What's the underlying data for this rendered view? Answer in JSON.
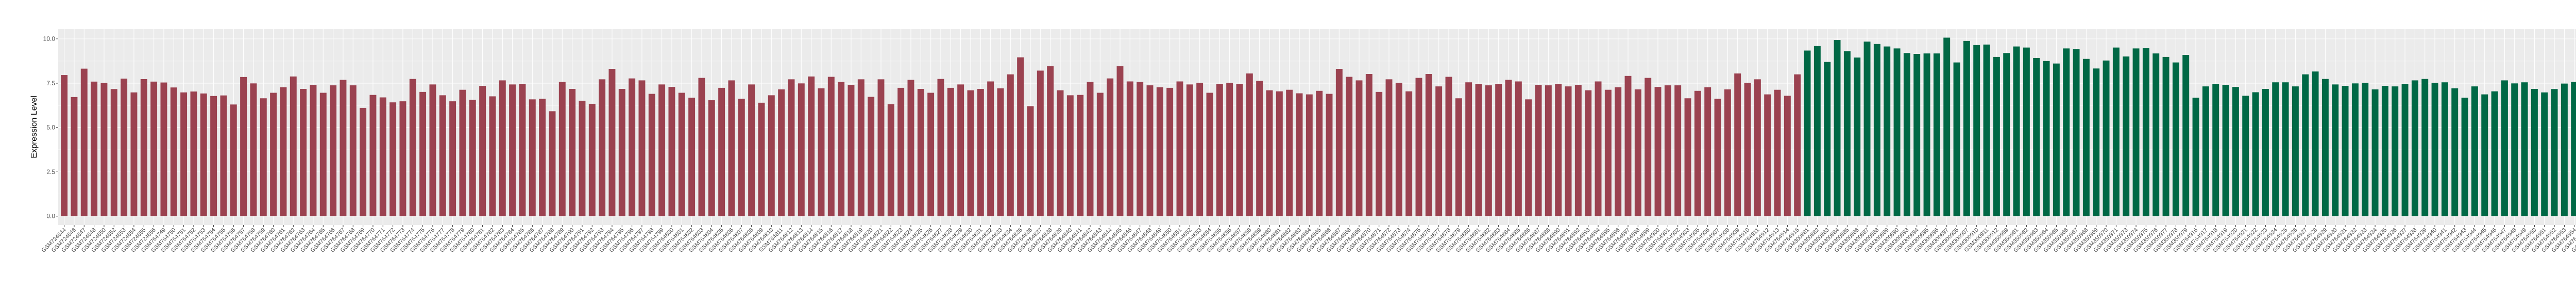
{
  "chart_data": {
    "type": "bar",
    "title": "",
    "xlabel": "",
    "ylabel": "Expression Level",
    "ylim": [
      -0.5,
      10.57
    ],
    "yticks": [
      "0.0",
      "2.5",
      "5.0",
      "7.5",
      "10.0"
    ],
    "ytick_values": [
      0,
      2.5,
      5,
      7.5,
      10
    ],
    "grid": true,
    "legend": "none",
    "panel_background": "#EBEBEB",
    "x_label_rotation_deg": 45,
    "color_groups": [
      {
        "color": "#9B4250",
        "from": "GSM724644",
        "to": "GSM764915"
      },
      {
        "color": "#006845",
        "from": "GSM300881",
        "to": "GSM80749"
      }
    ],
    "categories": [
      "GSM724644",
      "GSM724646",
      "GSM724647",
      "GSM724648",
      "GSM724650",
      "GSM724652",
      "GSM724653",
      "GSM724654",
      "GSM724655",
      "GSM724656",
      "GSM764749",
      "GSM764750",
      "GSM764751",
      "GSM764752",
      "GSM764753",
      "GSM764754",
      "GSM764755",
      "GSM764756",
      "GSM764757",
      "GSM764758",
      "GSM764759",
      "GSM764760",
      "GSM764761",
      "GSM764762",
      "GSM764763",
      "GSM764764",
      "GSM764765",
      "GSM764766",
      "GSM764767",
      "GSM764768",
      "GSM764769",
      "GSM764770",
      "GSM764771",
      "GSM764772",
      "GSM764773",
      "GSM764774",
      "GSM764775",
      "GSM764776",
      "GSM764777",
      "GSM764778",
      "GSM764779",
      "GSM764780",
      "GSM764781",
      "GSM764782",
      "GSM764783",
      "GSM764784",
      "GSM764785",
      "GSM764786",
      "GSM764787",
      "GSM764788",
      "GSM764789",
      "GSM764790",
      "GSM764791",
      "GSM764792",
      "GSM764793",
      "GSM764794",
      "GSM764795",
      "GSM764796",
      "GSM764797",
      "GSM764798",
      "GSM764799",
      "GSM764800",
      "GSM764801",
      "GSM764802",
      "GSM764803",
      "GSM764804",
      "GSM764805",
      "GSM764806",
      "GSM764807",
      "GSM764808",
      "GSM764809",
      "GSM764810",
      "GSM764811",
      "GSM764812",
      "GSM764813",
      "GSM764814",
      "GSM764815",
      "GSM764816",
      "GSM764817",
      "GSM764818",
      "GSM764819",
      "GSM764820",
      "GSM764821",
      "GSM764822",
      "GSM764823",
      "GSM764824",
      "GSM764825",
      "GSM764826",
      "GSM764827",
      "GSM764828",
      "GSM764829",
      "GSM764830",
      "GSM764831",
      "GSM764832",
      "GSM764833",
      "GSM764834",
      "GSM764835",
      "GSM764836",
      "GSM764837",
      "GSM764838",
      "GSM764839",
      "GSM764840",
      "GSM764841",
      "GSM764842",
      "GSM764843",
      "GSM764844",
      "GSM764845",
      "GSM764846",
      "GSM764847",
      "GSM764848",
      "GSM764849",
      "GSM764850",
      "GSM764851",
      "GSM764852",
      "GSM764853",
      "GSM764854",
      "GSM764855",
      "GSM764856",
      "GSM764857",
      "GSM764858",
      "GSM764859",
      "GSM764860",
      "GSM764861",
      "GSM764862",
      "GSM764863",
      "GSM764864",
      "GSM764865",
      "GSM764866",
      "GSM764867",
      "GSM764868",
      "GSM764869",
      "GSM764870",
      "GSM764871",
      "GSM764872",
      "GSM764873",
      "GSM764874",
      "GSM764875",
      "GSM764876",
      "GSM764877",
      "GSM764878",
      "GSM764879",
      "GSM764880",
      "GSM764881",
      "GSM764882",
      "GSM764883",
      "GSM764884",
      "GSM764885",
      "GSM764886",
      "GSM764887",
      "GSM764888",
      "GSM764890",
      "GSM764891",
      "GSM764892",
      "GSM764893",
      "GSM764894",
      "GSM764895",
      "GSM764896",
      "GSM764897",
      "GSM764898",
      "GSM764899",
      "GSM764900",
      "GSM764901",
      "GSM764902",
      "GSM764903",
      "GSM764905",
      "GSM764906",
      "GSM764907",
      "GSM764908",
      "GSM764909",
      "GSM764910",
      "GSM764911",
      "GSM764912",
      "GSM764913",
      "GSM764914",
      "GSM764915",
      "GSM300881",
      "GSM300882",
      "GSM300883",
      "GSM300884",
      "GSM300885",
      "GSM300886",
      "GSM300887",
      "GSM300888",
      "GSM300889",
      "GSM300890",
      "GSM300893",
      "GSM300894",
      "GSM300895",
      "GSM300896",
      "GSM300897",
      "GSM300905",
      "GSM300907",
      "GSM300910",
      "GSM300911",
      "GSM300912",
      "GSM350959",
      "GSM350961",
      "GSM350962",
      "GSM350963",
      "GSM350964",
      "GSM350965",
      "GSM350966",
      "GSM350967",
      "GSM350968",
      "GSM350969",
      "GSM350970",
      "GSM350971",
      "GSM350973",
      "GSM350974",
      "GSM350975",
      "GSM350976",
      "GSM350977",
      "GSM350978",
      "GSM350979",
      "GSM764916",
      "GSM764917",
      "GSM764918",
      "GSM764919",
      "GSM764920",
      "GSM764921",
      "GSM764922",
      "GSM764923",
      "GSM764924",
      "GSM764925",
      "GSM764926",
      "GSM764927",
      "GSM764928",
      "GSM764929",
      "GSM764930",
      "GSM764931",
      "GSM764932",
      "GSM764933",
      "GSM764934",
      "GSM764935",
      "GSM764936",
      "GSM764937",
      "GSM764938",
      "GSM764939",
      "GSM764940",
      "GSM764941",
      "GSM764942",
      "GSM764943",
      "GSM764944",
      "GSM764945",
      "GSM764946",
      "GSM764947",
      "GSM764948",
      "GSM764949",
      "GSM764950",
      "GSM764951",
      "GSM764952",
      "GSM764953",
      "GSM764954",
      "GSM764955",
      "GSM764956",
      "GSM764957",
      "GSM764958",
      "GSM764959",
      "GSM764960",
      "GSM80748",
      "GSM80749"
    ],
    "values": [
      7.96,
      6.72,
      8.32,
      7.59,
      7.51,
      7.17,
      7.76,
      6.98,
      7.73,
      7.59,
      7.54,
      7.26,
      6.98,
      7.03,
      6.92,
      6.78,
      6.81,
      6.3,
      7.85,
      7.49,
      6.65,
      6.96,
      7.27,
      7.88,
      7.18,
      7.41,
      6.96,
      7.38,
      7.69,
      7.38,
      6.11,
      6.84,
      6.7,
      6.42,
      6.48,
      7.74,
      7.01,
      7.43,
      6.82,
      6.48,
      7.13,
      6.56,
      7.35,
      6.76,
      7.66,
      7.43,
      7.46,
      6.59,
      6.62,
      5.92,
      7.57,
      7.18,
      6.51,
      6.34,
      7.72,
      8.31,
      7.18,
      7.77,
      7.66,
      6.9,
      7.43,
      7.29,
      6.96,
      6.68,
      7.8,
      6.54,
      7.24,
      7.66,
      6.62,
      7.43,
      6.4,
      6.82,
      7.15,
      7.72,
      7.49,
      7.88,
      7.21,
      7.86,
      7.57,
      7.41,
      7.72,
      6.73,
      7.72,
      6.31,
      7.24,
      7.69,
      7.18,
      6.96,
      7.74,
      7.24,
      7.43,
      7.1,
      7.18,
      7.6,
      7.21,
      8.0,
      8.96,
      6.2,
      8.21,
      8.46,
      7.1,
      6.82,
      6.84,
      7.57,
      6.96,
      7.77,
      8.46,
      7.6,
      7.57,
      7.38,
      7.27,
      7.24,
      7.6,
      7.43,
      7.52,
      6.96,
      7.46,
      7.52,
      7.46,
      8.05,
      7.63,
      7.1,
      7.04,
      7.13,
      6.93,
      6.87,
      7.07,
      6.9,
      8.31,
      7.86,
      7.66,
      8.02,
      7.01,
      7.72,
      7.52,
      7.04,
      7.8,
      8.02,
      7.32,
      7.86,
      6.65,
      7.55,
      7.46,
      7.38,
      7.46,
      7.69,
      7.6,
      6.59,
      7.41,
      7.38,
      7.46,
      7.32,
      7.41,
      7.1,
      7.6,
      7.13,
      7.27,
      7.91,
      7.15,
      7.8,
      7.29,
      7.38,
      7.38,
      6.65,
      7.07,
      7.27,
      6.62,
      7.15,
      8.05,
      7.52,
      7.72,
      6.87,
      7.13,
      6.79,
      8.0,
      9.34,
      9.6,
      8.7,
      9.93,
      9.31,
      8.95,
      9.85,
      9.71,
      9.57,
      9.46,
      9.2,
      9.15,
      9.18,
      9.18,
      10.07,
      8.67,
      9.88,
      9.65,
      9.68,
      8.98,
      9.2,
      9.57,
      9.51,
      8.92,
      8.75,
      8.61,
      9.46,
      9.43,
      8.87,
      8.33,
      8.78,
      9.51,
      9.01,
      9.46,
      9.49,
      9.18,
      8.98,
      8.67,
      9.09,
      6.68,
      7.32,
      7.46,
      7.41,
      7.29,
      6.79,
      6.99,
      7.18,
      7.55,
      7.55,
      7.32,
      8.0,
      8.16,
      7.74,
      7.43,
      7.35,
      7.49,
      7.52,
      7.15,
      7.35,
      7.32,
      7.46,
      7.66,
      7.74,
      7.52,
      7.55,
      7.21,
      6.68,
      7.32,
      6.87,
      7.04,
      7.66,
      7.49,
      7.55,
      7.18,
      6.98,
      7.17,
      7.48,
      7.57,
      7.62,
      7.26,
      8.1,
      7.85,
      7.87,
      7.54,
      8.01,
      7.59
    ]
  }
}
